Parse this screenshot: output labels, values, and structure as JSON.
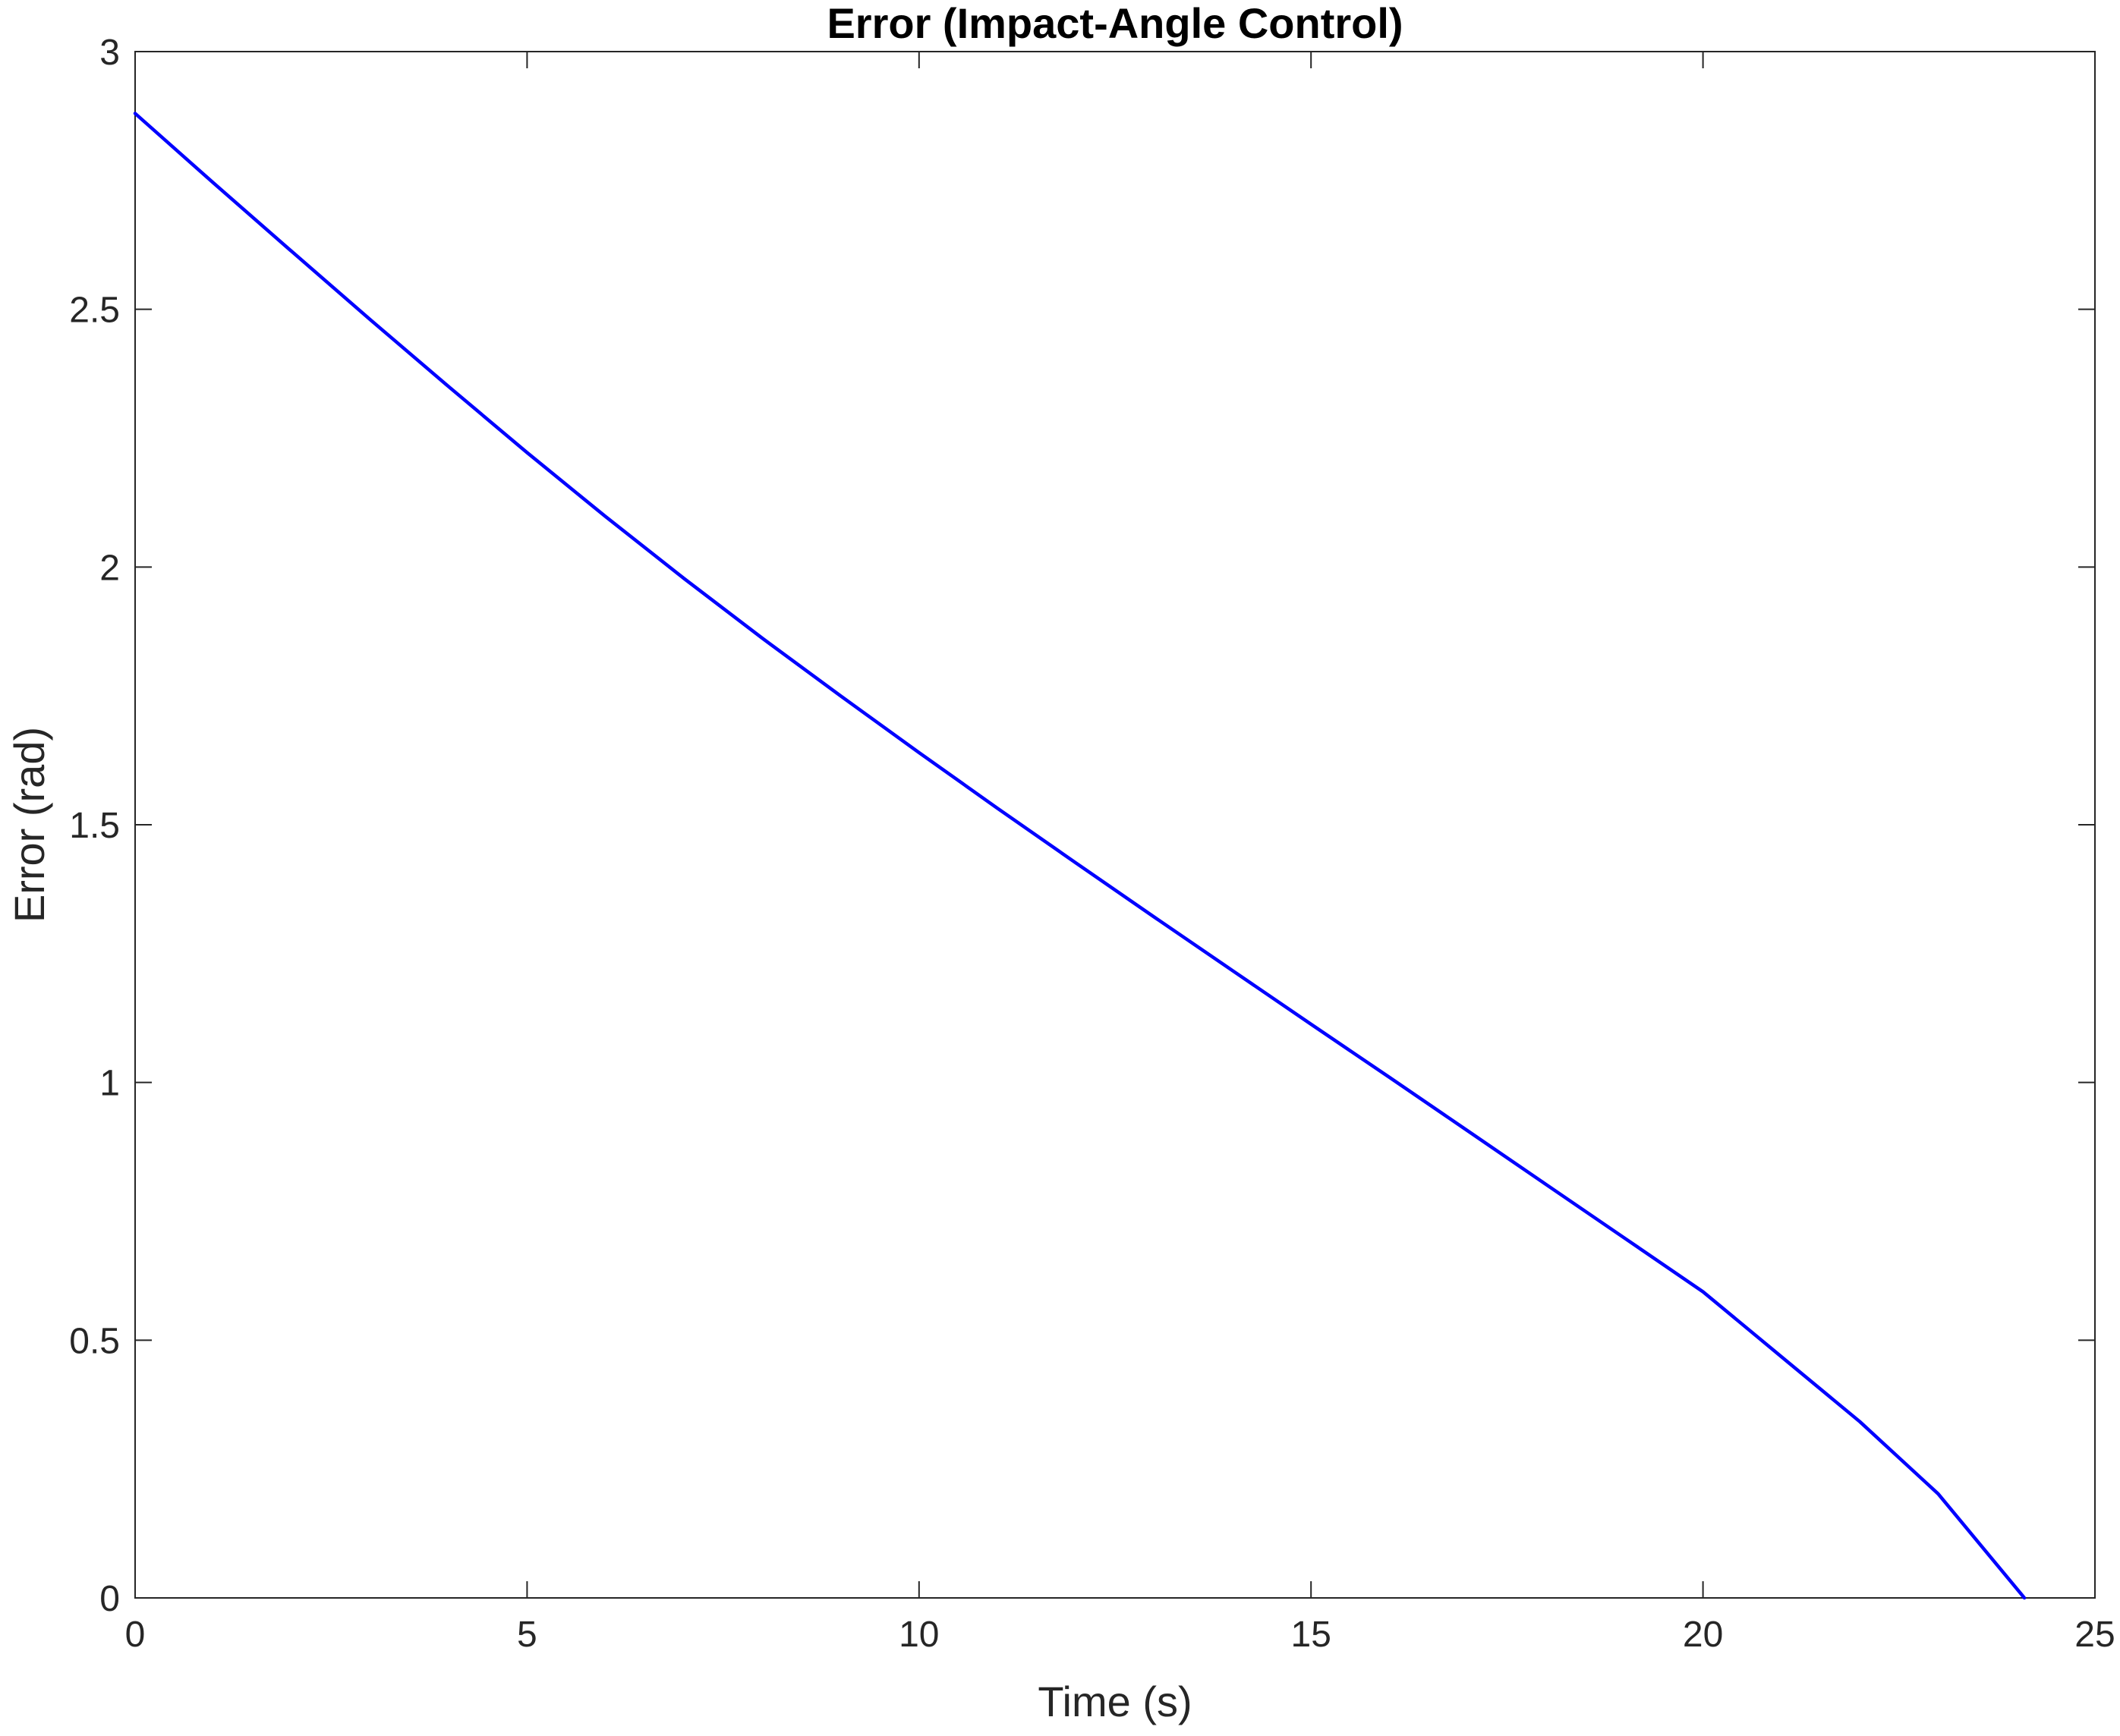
{
  "chart_data": {
    "type": "line",
    "title": "Error (Impact-Angle Control)",
    "xlabel": "Time (s)",
    "ylabel": "Error (rad)",
    "xlim": [
      0,
      25
    ],
    "ylim": [
      0,
      3
    ],
    "xticks": [
      0,
      5,
      10,
      15,
      20,
      25
    ],
    "yticks": [
      0,
      0.5,
      1,
      1.5,
      2,
      2.5,
      3
    ],
    "xtick_labels": [
      "0",
      "5",
      "10",
      "15",
      "20",
      "25"
    ],
    "ytick_labels": [
      "0",
      "0.5",
      "1",
      "1.5",
      "2",
      "2.5",
      "3"
    ],
    "grid": true,
    "legend": null,
    "series": [
      {
        "color": "#0000ff",
        "x": [
          0,
          1,
          2,
          3,
          4,
          5,
          6,
          7,
          8,
          9,
          10,
          11,
          12,
          13,
          14,
          15,
          16,
          17,
          18,
          19,
          20,
          21,
          22,
          23,
          24.1
        ],
        "y": [
          2.88,
          2.745,
          2.612,
          2.48,
          2.35,
          2.222,
          2.098,
          1.978,
          1.862,
          1.75,
          1.64,
          1.532,
          1.426,
          1.321,
          1.217,
          1.113,
          1.01,
          0.906,
          0.802,
          0.698,
          0.594,
          0.468,
          0.342,
          0.202,
          0.0
        ]
      }
    ]
  }
}
